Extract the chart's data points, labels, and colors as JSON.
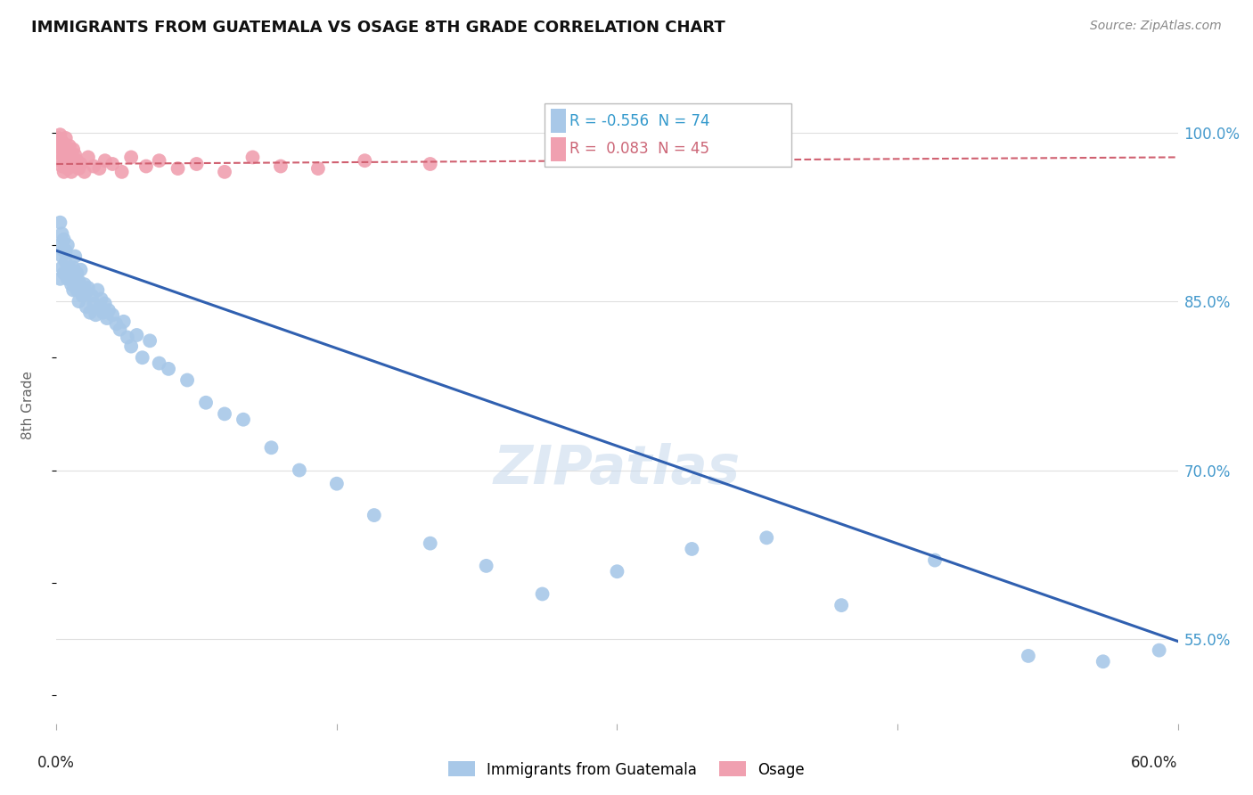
{
  "title": "IMMIGRANTS FROM GUATEMALA VS OSAGE 8TH GRADE CORRELATION CHART",
  "source": "Source: ZipAtlas.com",
  "ylabel": "8th Grade",
  "ytick_labels": [
    "55.0%",
    "70.0%",
    "85.0%",
    "100.0%"
  ],
  "ytick_values": [
    0.55,
    0.7,
    0.85,
    1.0
  ],
  "xlim": [
    0.0,
    0.6
  ],
  "ylim": [
    0.475,
    1.04
  ],
  "legend_blue_R": "-0.556",
  "legend_blue_N": "74",
  "legend_pink_R": "0.083",
  "legend_pink_N": "45",
  "blue_color": "#a8c8e8",
  "pink_color": "#f0a0b0",
  "blue_line_color": "#3060b0",
  "pink_line_color": "#d06070",
  "background_color": "#ffffff",
  "grid_color": "#e0e0e0",
  "blue_scatter_x": [
    0.001,
    0.002,
    0.002,
    0.003,
    0.003,
    0.003,
    0.004,
    0.004,
    0.004,
    0.005,
    0.005,
    0.005,
    0.006,
    0.006,
    0.007,
    0.007,
    0.008,
    0.008,
    0.009,
    0.009,
    0.01,
    0.01,
    0.011,
    0.011,
    0.012,
    0.012,
    0.013,
    0.013,
    0.014,
    0.015,
    0.016,
    0.016,
    0.017,
    0.018,
    0.019,
    0.02,
    0.021,
    0.022,
    0.023,
    0.024,
    0.025,
    0.026,
    0.027,
    0.028,
    0.03,
    0.032,
    0.034,
    0.036,
    0.038,
    0.04,
    0.043,
    0.046,
    0.05,
    0.055,
    0.06,
    0.07,
    0.08,
    0.09,
    0.1,
    0.115,
    0.13,
    0.15,
    0.17,
    0.2,
    0.23,
    0.26,
    0.3,
    0.34,
    0.38,
    0.42,
    0.47,
    0.52,
    0.56,
    0.59
  ],
  "blue_scatter_y": [
    0.9,
    0.87,
    0.92,
    0.88,
    0.91,
    0.89,
    0.895,
    0.875,
    0.905,
    0.885,
    0.895,
    0.875,
    0.87,
    0.9,
    0.88,
    0.87,
    0.875,
    0.865,
    0.88,
    0.86,
    0.87,
    0.89,
    0.875,
    0.86,
    0.868,
    0.85,
    0.862,
    0.878,
    0.855,
    0.865,
    0.858,
    0.845,
    0.862,
    0.84,
    0.855,
    0.848,
    0.838,
    0.86,
    0.845,
    0.852,
    0.84,
    0.848,
    0.835,
    0.842,
    0.838,
    0.83,
    0.825,
    0.832,
    0.818,
    0.81,
    0.82,
    0.8,
    0.815,
    0.795,
    0.79,
    0.78,
    0.76,
    0.75,
    0.745,
    0.72,
    0.7,
    0.688,
    0.66,
    0.635,
    0.615,
    0.59,
    0.61,
    0.63,
    0.64,
    0.58,
    0.62,
    0.535,
    0.53,
    0.54
  ],
  "pink_scatter_x": [
    0.001,
    0.001,
    0.002,
    0.002,
    0.002,
    0.003,
    0.003,
    0.003,
    0.004,
    0.004,
    0.004,
    0.005,
    0.005,
    0.005,
    0.006,
    0.006,
    0.007,
    0.007,
    0.008,
    0.008,
    0.009,
    0.009,
    0.01,
    0.01,
    0.011,
    0.012,
    0.013,
    0.015,
    0.017,
    0.02,
    0.023,
    0.026,
    0.03,
    0.035,
    0.04,
    0.048,
    0.055,
    0.065,
    0.075,
    0.09,
    0.105,
    0.12,
    0.14,
    0.165,
    0.2
  ],
  "pink_scatter_y": [
    0.982,
    0.995,
    0.975,
    0.988,
    0.998,
    0.97,
    0.985,
    0.992,
    0.978,
    0.965,
    0.99,
    0.975,
    0.982,
    0.995,
    0.968,
    0.98,
    0.972,
    0.988,
    0.965,
    0.978,
    0.975,
    0.985,
    0.97,
    0.98,
    0.975,
    0.968,
    0.972,
    0.965,
    0.978,
    0.97,
    0.968,
    0.975,
    0.972,
    0.965,
    0.978,
    0.97,
    0.975,
    0.968,
    0.972,
    0.965,
    0.978,
    0.97,
    0.968,
    0.975,
    0.972
  ],
  "blue_trendline_x": [
    0.0,
    0.6
  ],
  "blue_trendline_y": [
    0.895,
    0.548
  ],
  "pink_trendline_x": [
    0.0,
    0.6
  ],
  "pink_trendline_y": [
    0.972,
    0.978
  ]
}
